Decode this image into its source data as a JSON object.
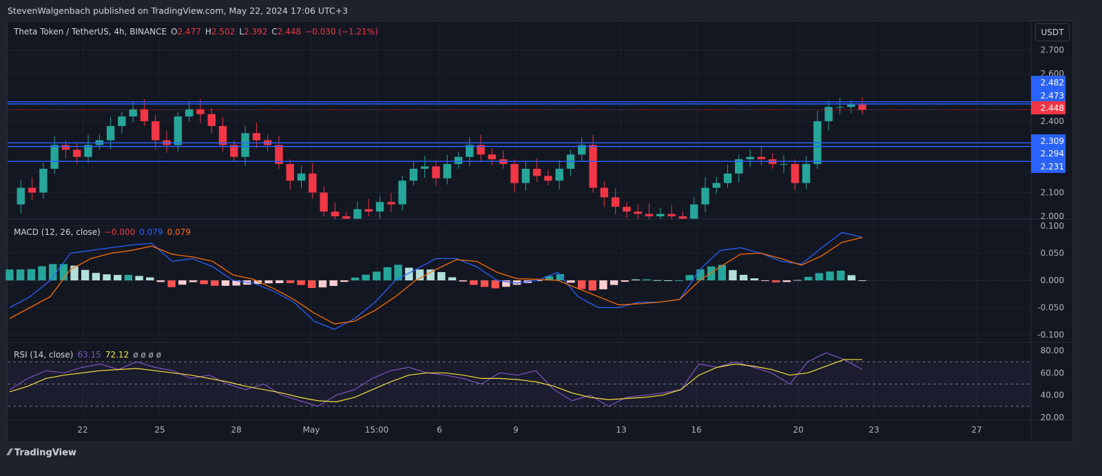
{
  "publisher": "StevenWalgenbach published on TradingView.com, May 22, 2024 17:06 UTC+3",
  "brand": "TradingView",
  "currency_button": "USDT",
  "legend": {
    "symbol": "Theta Token / TetherUS, 4h, BINANCE",
    "o_label": "O",
    "o": "2.477",
    "h_label": "H",
    "h": "2.502",
    "l_label": "L",
    "l": "2.392",
    "c_label": "C",
    "c": "2.448",
    "change": "−0.030 (−1.21%)"
  },
  "macd_legend": {
    "name": "MACD (12, 26, close)",
    "hist": "−0.000",
    "macd": "0.079",
    "signal": "0.079"
  },
  "rsi_legend": {
    "name": "RSI (14, close)",
    "rsi": "63.15",
    "ma": "72.12",
    "extra": "ø ø ø ø"
  },
  "colors": {
    "up": "#26a69a",
    "down": "#f23645",
    "level": "#2962ff",
    "macd": "#2962ff",
    "signal": "#ff6d00",
    "rsi": "#7e57c2",
    "rsi_ma": "#f7e43a"
  },
  "chart_data": [
    {
      "type": "candlestick",
      "title": "Theta Token / TetherUS, 4h, BINANCE",
      "ylim": [
        1.98,
        2.74
      ],
      "yticks": [
        "2.700",
        "2.600",
        "2.400",
        "2.100",
        "2.000"
      ],
      "xticks": [
        "22",
        "25",
        "28",
        "May",
        "15:00",
        "6",
        "9",
        "13",
        "16",
        "20",
        "23",
        "27"
      ],
      "levels": [
        {
          "value": 2.482,
          "label": "2.482"
        },
        {
          "value": 2.473,
          "label": "2.473"
        },
        {
          "value": 2.309,
          "label": "2.309"
        },
        {
          "value": 2.294,
          "label": "2.294"
        },
        {
          "value": 2.231,
          "label": "2.231"
        }
      ],
      "last_price": {
        "value": 2.448,
        "label": "2.448"
      },
      "closes": [
        2.05,
        2.12,
        2.1,
        2.2,
        2.3,
        2.28,
        2.25,
        2.3,
        2.32,
        2.38,
        2.42,
        2.45,
        2.4,
        2.32,
        2.3,
        2.42,
        2.45,
        2.43,
        2.38,
        2.3,
        2.25,
        2.35,
        2.32,
        2.3,
        2.22,
        2.15,
        2.18,
        2.1,
        2.02,
        2.0,
        1.99,
        2.03,
        2.02,
        2.06,
        2.05,
        2.15,
        2.2,
        2.21,
        2.16,
        2.22,
        2.25,
        2.3,
        2.26,
        2.24,
        2.22,
        2.14,
        2.2,
        2.17,
        2.15,
        2.2,
        2.26,
        2.3,
        2.12,
        2.08,
        2.04,
        2.02,
        2.01,
        2.0,
        2.01,
        2.0,
        1.99,
        2.05,
        2.12,
        2.14,
        2.18,
        2.24,
        2.25,
        2.24,
        2.22,
        2.22,
        2.14,
        2.22,
        2.4,
        2.46,
        2.46,
        2.47,
        2.448
      ]
    },
    {
      "type": "line",
      "title": "MACD (12, 26, close)",
      "ylim": [
        -0.115,
        0.115
      ],
      "yticks": [
        "0.100",
        "0.050",
        "0.000",
        "-0.050",
        "-0.100"
      ],
      "series": [
        {
          "name": "MACD",
          "values": [
            -0.05,
            -0.03,
            0.0,
            0.05,
            0.055,
            0.06,
            0.065,
            0.068,
            0.035,
            0.04,
            0.025,
            0.0,
            -0.005,
            -0.02,
            -0.04,
            -0.075,
            -0.09,
            -0.07,
            -0.04,
            0.0,
            0.02,
            0.04,
            0.04,
            0.025,
            0.0,
            -0.005,
            0.0,
            0.015,
            -0.03,
            -0.05,
            -0.05,
            -0.04,
            -0.04,
            -0.035,
            0.02,
            0.055,
            0.06,
            0.05,
            0.035,
            0.03,
            0.06,
            0.088,
            0.079
          ]
        },
        {
          "name": "Signal",
          "values": [
            -0.07,
            -0.05,
            -0.03,
            0.02,
            0.04,
            0.05,
            0.055,
            0.063,
            0.048,
            0.043,
            0.035,
            0.01,
            0.002,
            -0.015,
            -0.035,
            -0.06,
            -0.08,
            -0.075,
            -0.055,
            -0.03,
            0.0,
            0.02,
            0.038,
            0.035,
            0.015,
            0.003,
            0.002,
            0.0,
            -0.015,
            -0.03,
            -0.045,
            -0.043,
            -0.04,
            -0.035,
            0.0,
            0.025,
            0.048,
            0.05,
            0.04,
            0.028,
            0.045,
            0.07,
            0.079
          ]
        }
      ]
    },
    {
      "type": "line",
      "title": "RSI (14, close)",
      "ylim": [
        17,
        87
      ],
      "yticks": [
        "80.00",
        "60.00",
        "40.00",
        "20.00"
      ],
      "bands": [
        70,
        50,
        30
      ],
      "series": [
        {
          "name": "RSI",
          "values": [
            45,
            55,
            62,
            60,
            65,
            68,
            63,
            70,
            65,
            62,
            55,
            58,
            50,
            45,
            50,
            40,
            35,
            30,
            40,
            45,
            55,
            62,
            65,
            60,
            58,
            55,
            50,
            60,
            58,
            62,
            45,
            35,
            40,
            30,
            38,
            40,
            42,
            45,
            68,
            65,
            70,
            65,
            60,
            50,
            70,
            78,
            72,
            63
          ]
        },
        {
          "name": "RSI MA",
          "values": [
            43,
            48,
            55,
            58,
            60,
            62,
            63,
            64,
            62,
            60,
            58,
            55,
            52,
            48,
            45,
            42,
            38,
            35,
            34,
            38,
            45,
            52,
            58,
            60,
            60,
            58,
            55,
            55,
            54,
            52,
            48,
            42,
            38,
            36,
            37,
            38,
            40,
            45,
            58,
            65,
            68,
            66,
            63,
            58,
            60,
            66,
            72,
            72
          ]
        }
      ]
    }
  ]
}
